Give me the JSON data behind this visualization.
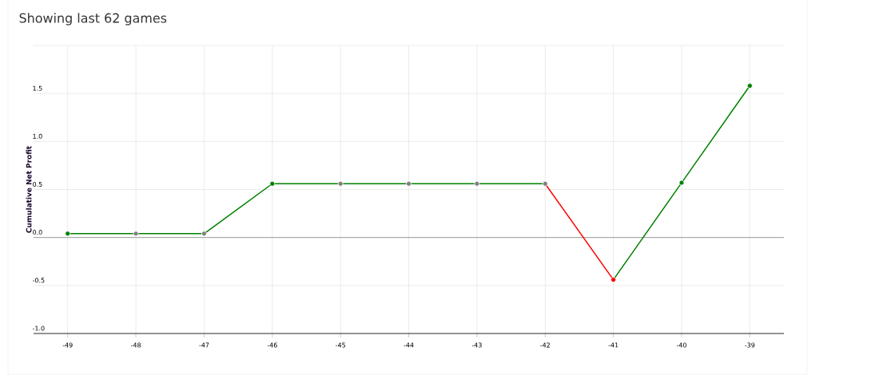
{
  "chart_data": {
    "type": "line",
    "title": "Showing last 62 games",
    "ylabel": "Cumulative Net Profit",
    "xlim": [
      -49.5,
      -38.5
    ],
    "xticks": [
      -49,
      -48,
      -47,
      -46,
      -45,
      -44,
      -43,
      -42,
      -41,
      -40,
      -39
    ],
    "ylim": [
      -1.0,
      2.0
    ],
    "yticks": [
      {
        "value": -1.0,
        "label": "-1.0"
      },
      -0.5,
      {
        "value": 0,
        "label": "0.0"
      },
      0.5,
      {
        "value": 1.0,
        "label": "1.0"
      },
      1.5,
      {
        "value": 2.0,
        "label": null
      }
    ],
    "grid": true,
    "ref_lines": [
      {
        "axis": "y",
        "value": 0,
        "color": "#888888"
      }
    ],
    "series": [
      {
        "color": "#008000",
        "marker": "none",
        "x": [
          -49,
          -48,
          -47,
          -46,
          -45,
          -44,
          -43,
          -42
        ],
        "values": [
          0.04,
          0.04,
          0.04,
          0.56,
          0.56,
          0.56,
          0.56,
          0.56
        ]
      },
      {
        "color": "#ff0000",
        "marker": "none",
        "x": [
          -42,
          -41
        ],
        "values": [
          0.56,
          -0.44
        ]
      },
      {
        "color": "#008000",
        "marker": "none",
        "x": [
          -41,
          -40,
          -39
        ],
        "values": [
          -0.44,
          0.57,
          1.58
        ]
      },
      {
        "type": "scatter",
        "marker": "circle",
        "x": [
          -49,
          -48,
          -47,
          -46,
          -45,
          -44,
          -43,
          -42,
          -41,
          -40,
          -39
        ],
        "values": [
          0.04,
          0.04,
          0.04,
          0.56,
          0.56,
          0.56,
          0.56,
          0.56,
          -0.44,
          0.57,
          1.58
        ],
        "colors": [
          "#008000",
          "#808080",
          "#808080",
          "#008000",
          "#808080",
          "#808080",
          "#808080",
          "#808080",
          "#ff0000",
          "#008000",
          "#008000"
        ]
      }
    ]
  }
}
